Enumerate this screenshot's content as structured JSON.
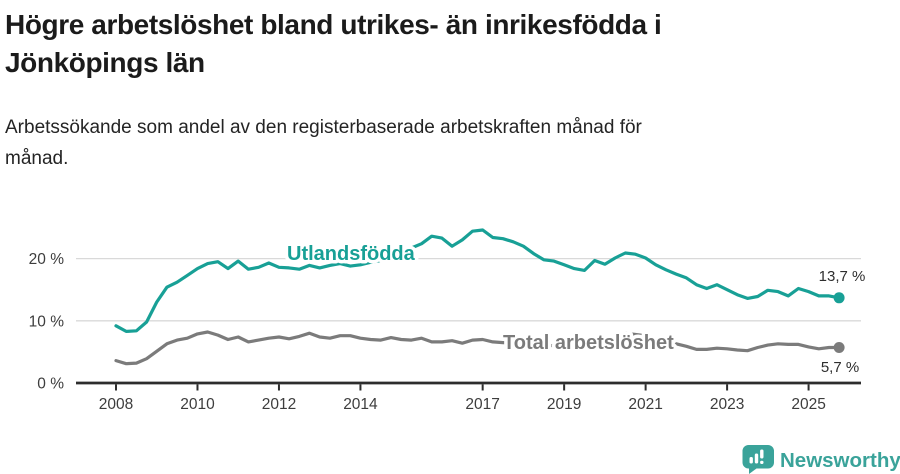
{
  "header": {
    "title_lines": [
      "Högre arbetslöshet bland utrikes- än inrikesfödda i",
      "Jönköpings län"
    ],
    "subtitle_lines": [
      "Arbetssökande som andel av den registerbaserade arbetskraften månad för",
      "månad."
    ]
  },
  "chart_data": {
    "type": "line",
    "x_start": 2008.0,
    "x_step": 0.25,
    "x_end": 2025.75,
    "x_ticks": [
      "2008",
      "2010",
      "2012",
      "2014",
      "2017",
      "2019",
      "2021",
      "2023",
      "2025"
    ],
    "x_tick_years": [
      2008,
      2010,
      2012,
      2014,
      2017,
      2019,
      2021,
      2023,
      2025
    ],
    "y_ticks": [
      {
        "value": 0,
        "label": "0 %"
      },
      {
        "value": 10,
        "label": "10 %"
      },
      {
        "value": 20,
        "label": "20 %"
      }
    ],
    "ylim": [
      0,
      26
    ],
    "grid": "horizontal-at-10-and-20",
    "legend_position": "inline-labels-on-lines",
    "series": [
      {
        "name": "Utlandsfödda",
        "color": "#18a096",
        "end_label": "13,7 %",
        "end_value": 13.7,
        "values": [
          9.2,
          8.3,
          8.4,
          9.8,
          13.0,
          15.4,
          16.2,
          17.3,
          18.4,
          19.2,
          19.5,
          18.4,
          19.6,
          18.3,
          18.6,
          19.3,
          18.6,
          18.5,
          18.3,
          18.9,
          18.5,
          18.9,
          19.2,
          18.8,
          19.0,
          19.4,
          19.7,
          20.3,
          21.0,
          21.7,
          22.4,
          23.6,
          23.3,
          22.0,
          23.0,
          24.4,
          24.6,
          23.4,
          23.2,
          22.7,
          22.0,
          20.8,
          19.8,
          19.6,
          19.0,
          18.4,
          18.1,
          19.7,
          19.1,
          20.1,
          20.9,
          20.7,
          20.1,
          19.0,
          18.2,
          17.5,
          16.9,
          15.8,
          15.2,
          15.8,
          15.0,
          14.2,
          13.6,
          13.9,
          14.9,
          14.7,
          14.0,
          15.2,
          14.7,
          14.0,
          14.0,
          13.7
        ]
      },
      {
        "name": "Total arbetslöshet",
        "color": "#7b7b7b",
        "end_label": "5,7 %",
        "end_value": 5.7,
        "values": [
          3.6,
          3.1,
          3.2,
          3.9,
          5.1,
          6.3,
          6.9,
          7.2,
          7.9,
          8.2,
          7.7,
          7.0,
          7.4,
          6.6,
          6.9,
          7.2,
          7.4,
          7.1,
          7.5,
          8.0,
          7.4,
          7.2,
          7.6,
          7.6,
          7.2,
          7.0,
          6.9,
          7.3,
          7.0,
          6.9,
          7.2,
          6.6,
          6.6,
          6.8,
          6.4,
          6.9,
          7.0,
          6.6,
          6.5,
          6.4,
          6.3,
          6.2,
          6.1,
          6.0,
          6.0,
          5.9,
          5.9,
          6.0,
          6.2,
          7.6,
          8.0,
          7.8,
          7.6,
          7.2,
          6.7,
          6.3,
          5.9,
          5.4,
          5.4,
          5.6,
          5.5,
          5.3,
          5.2,
          5.7,
          6.1,
          6.3,
          6.2,
          6.2,
          5.8,
          5.5,
          5.7,
          5.7
        ]
      }
    ]
  },
  "footer": {
    "brand": "Newsworthy",
    "logo_color": "#3aa39a",
    "logo_icon": "speech-bubble-with-bar-chart-and-exclamation"
  }
}
